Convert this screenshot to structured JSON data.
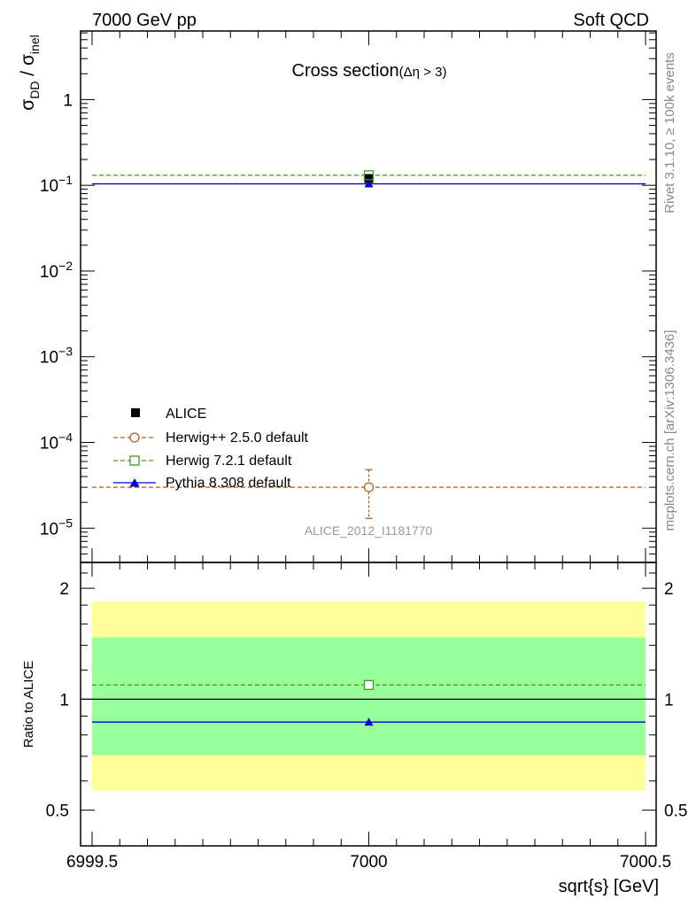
{
  "header": {
    "left": "7000 GeV pp",
    "right": "Soft QCD"
  },
  "side_text": {
    "rivet": "Rivet 3.1.10, ≥ 100k events",
    "source": "mcplots.cern.ch [arXiv:1306.3436]"
  },
  "chart_data": [
    {
      "type": "scatter",
      "panel": "main",
      "title": "Cross section",
      "title_sub": "(Δη > 3)",
      "ylabel": {
        "sym": "σ",
        "sub": "DD",
        "sep": " / ",
        "sym2": "σ",
        "sub2": "inel"
      },
      "y_scale": "log",
      "xlim": [
        6999.5,
        7000.5
      ],
      "ylim_log10": [
        -5.4,
        0.8
      ],
      "y_ticks": [
        {
          "exp": 0,
          "label": "1"
        },
        {
          "exp": -1,
          "label": "10",
          "sup": "−1"
        },
        {
          "exp": -2,
          "label": "10",
          "sup": "−2"
        },
        {
          "exp": -3,
          "label": "10",
          "sup": "−3"
        },
        {
          "exp": -4,
          "label": "10",
          "sup": "−4"
        },
        {
          "exp": -5,
          "label": "10",
          "sup": "−5"
        }
      ],
      "watermark": "ALICE_2012_I1181770",
      "series": [
        {
          "name": "ALICE",
          "type": "data",
          "x": 7000,
          "y": 0.12,
          "color": "#000000",
          "marker": "square-filled"
        },
        {
          "name": "Herwig++ 2.5.0 default",
          "type": "mc",
          "x": 7000,
          "y": 3e-05,
          "yerr_low": 1.3e-05,
          "yerr_high": 4.8e-05,
          "color": "#b25f1e",
          "marker": "circle-open",
          "line": "dashed"
        },
        {
          "name": "Herwig 7.2.1 default",
          "type": "mc",
          "x": 7000,
          "y": 0.131,
          "color": "#3c9a1f",
          "marker": "square-open",
          "line": "dashed"
        },
        {
          "name": "Pythia 8.308 default",
          "type": "mc",
          "x": 7000,
          "y": 0.104,
          "color": "#0000d0",
          "marker": "triangle-filled",
          "line": "solid"
        }
      ]
    },
    {
      "type": "scatter",
      "panel": "ratio",
      "ylabel": "Ratio to ALICE",
      "xlabel": "sqrt{s} [GeV]",
      "xlim": [
        6999.5,
        7000.5
      ],
      "x_ticks": [
        {
          "value": 6999.5,
          "label": "6999.5"
        },
        {
          "value": 7000,
          "label": "7000"
        },
        {
          "value": 7000.5,
          "label": "7000.5"
        }
      ],
      "y_scale": "log",
      "ylim": [
        0.4,
        2.35
      ],
      "y_ticks": [
        {
          "value": 0.5,
          "label": "0.5"
        },
        {
          "value": 1,
          "label": "1"
        },
        {
          "value": 2,
          "label": "2"
        }
      ],
      "bands": [
        {
          "name": "2-sigma",
          "low": 0.565,
          "high": 1.84,
          "color": "#ffff99"
        },
        {
          "name": "1-sigma",
          "low": 0.705,
          "high": 1.47,
          "color": "#99ff99"
        }
      ],
      "series": [
        {
          "name": "Herwig 7.2.1 default",
          "x": 7000,
          "y": 1.093,
          "color": "#3c9a1f",
          "marker": "square-open",
          "line": "dashed"
        },
        {
          "name": "Pythia 8.308 default",
          "x": 7000,
          "y": 0.867,
          "color": "#0000d0",
          "marker": "triangle-filled",
          "line": "solid"
        }
      ]
    }
  ]
}
